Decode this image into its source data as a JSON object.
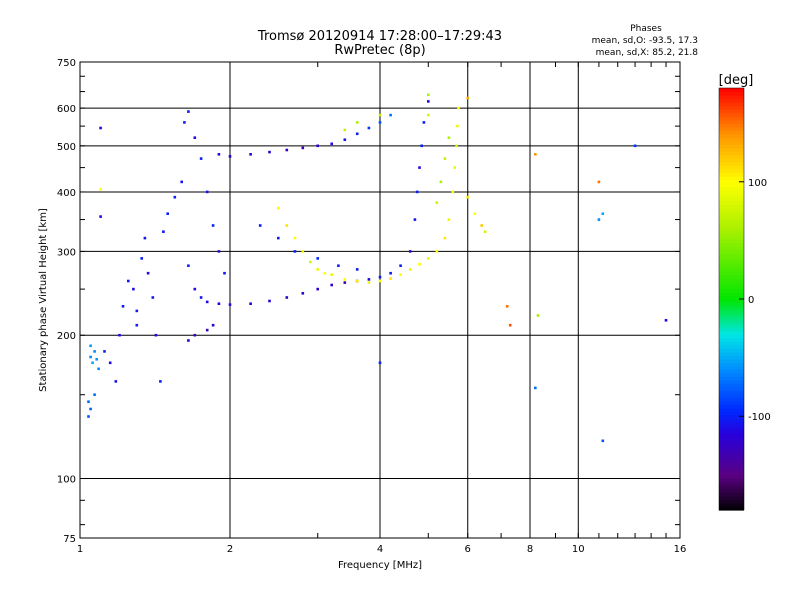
{
  "chart_data": {
    "type": "scatter",
    "title": "Tromsø 20120914 17:28:00–17:29:43",
    "subtitle": "RwPretec (8p)",
    "xlabel": "Frequency [MHz]",
    "ylabel": "Stationary phase Virtual Height [km]",
    "x_scale": "log",
    "y_scale": "log",
    "xlim": [
      1,
      16
    ],
    "ylim": [
      75,
      750
    ],
    "x_ticks": [
      1,
      2,
      4,
      6,
      8,
      10,
      16
    ],
    "x_tick_labels": [
      "1",
      "2",
      "4",
      "6",
      "8",
      "10",
      "16"
    ],
    "x_gridlines": [
      2,
      4,
      6,
      8,
      10
    ],
    "y_ticks": [
      75,
      100,
      200,
      300,
      400,
      500,
      600,
      750
    ],
    "y_tick_labels": [
      "75",
      "100",
      "200",
      "300",
      "400",
      "500",
      "600",
      "750"
    ],
    "y_gridlines": [
      100,
      200,
      300,
      400,
      500,
      600
    ],
    "grid": true,
    "info_box": {
      "title": "Phases",
      "line1": "mean, sd,O: -93.5, 17.3",
      "line2": "mean, sd,X:  85.2, 21.8"
    },
    "colorbar": {
      "label": "[deg]",
      "ticks": [
        100,
        0,
        -100
      ],
      "tick_labels": [
        "100",
        "0",
        "-100"
      ],
      "range": [
        -180,
        180
      ],
      "colormap": "rainbow (black–purple–blue–cyan–green–yellow–red)"
    },
    "series": [
      {
        "points": [
          [
            1.05,
            180,
            -60
          ],
          [
            1.05,
            190,
            -55
          ],
          [
            1.06,
            175,
            -50
          ],
          [
            1.07,
            185,
            -60
          ],
          [
            1.08,
            178,
            -55
          ],
          [
            1.09,
            170,
            -60
          ],
          [
            1.04,
            145,
            -70
          ],
          [
            1.05,
            140,
            -75
          ],
          [
            1.07,
            150,
            -70
          ],
          [
            1.04,
            135,
            -80
          ],
          [
            1.12,
            185,
            -100
          ],
          [
            1.15,
            175,
            -110
          ],
          [
            1.18,
            160,
            -105
          ],
          [
            1.2,
            200,
            -110
          ],
          [
            1.22,
            230,
            -100
          ],
          [
            1.25,
            260,
            -105
          ],
          [
            1.28,
            250,
            -110
          ],
          [
            1.3,
            210,
            -100
          ],
          [
            1.33,
            290,
            -100
          ],
          [
            1.35,
            320,
            -105
          ],
          [
            1.37,
            270,
            -110
          ],
          [
            1.4,
            240,
            -100
          ],
          [
            1.42,
            200,
            -110
          ],
          [
            1.45,
            160,
            -100
          ],
          [
            1.47,
            330,
            -105
          ],
          [
            1.5,
            360,
            -100
          ],
          [
            1.55,
            390,
            -100
          ],
          [
            1.6,
            420,
            -105
          ],
          [
            1.62,
            560,
            -100
          ],
          [
            1.65,
            590,
            -105
          ],
          [
            1.7,
            520,
            -110
          ],
          [
            1.75,
            470,
            -100
          ],
          [
            1.8,
            400,
            -105
          ],
          [
            1.85,
            340,
            -100
          ],
          [
            1.9,
            300,
            -110
          ],
          [
            1.95,
            270,
            -105
          ],
          [
            1.65,
            280,
            -100
          ],
          [
            1.7,
            250,
            -110
          ],
          [
            1.75,
            240,
            -105
          ],
          [
            1.8,
            235,
            -110
          ],
          [
            1.9,
            233,
            -115
          ],
          [
            2.0,
            232,
            -110
          ],
          [
            2.2,
            233,
            -115
          ],
          [
            2.4,
            236,
            -115
          ],
          [
            2.6,
            240,
            -120
          ],
          [
            2.8,
            245,
            -120
          ],
          [
            3.0,
            250,
            -120
          ],
          [
            3.2,
            255,
            -125
          ],
          [
            3.4,
            258,
            -130
          ],
          [
            3.6,
            260,
            -120
          ],
          [
            3.8,
            262,
            -110
          ],
          [
            4.0,
            265,
            -100
          ],
          [
            4.2,
            270,
            -105
          ],
          [
            4.4,
            280,
            -100
          ],
          [
            4.6,
            300,
            -110
          ],
          [
            4.7,
            350,
            -105
          ],
          [
            4.75,
            400,
            -100
          ],
          [
            4.8,
            450,
            -110
          ],
          [
            4.85,
            500,
            -100
          ],
          [
            4.9,
            560,
            -100
          ],
          [
            5.0,
            620,
            -110
          ],
          [
            1.65,
            195,
            -120
          ],
          [
            1.7,
            200,
            -125
          ],
          [
            1.8,
            205,
            -130
          ],
          [
            1.85,
            210,
            -120
          ],
          [
            1.9,
            480,
            -110
          ],
          [
            2.0,
            475,
            -115
          ],
          [
            2.2,
            480,
            -110
          ],
          [
            2.4,
            485,
            -120
          ],
          [
            2.6,
            490,
            -125
          ],
          [
            2.8,
            495,
            -130
          ],
          [
            3.0,
            500,
            -120
          ],
          [
            3.2,
            505,
            -110
          ],
          [
            3.4,
            515,
            -105
          ],
          [
            3.6,
            530,
            -100
          ],
          [
            3.8,
            545,
            -90
          ],
          [
            4.0,
            560,
            -80
          ],
          [
            4.2,
            580,
            -70
          ],
          [
            2.3,
            340,
            -100
          ],
          [
            2.5,
            320,
            -100
          ],
          [
            2.7,
            300,
            -100
          ],
          [
            3.0,
            290,
            -95
          ],
          [
            3.3,
            280,
            -100
          ],
          [
            3.6,
            275,
            -100
          ],
          [
            1.1,
            545,
            -110
          ],
          [
            1.1,
            355,
            -110
          ],
          [
            1.1,
            405,
            100
          ],
          [
            1.3,
            225,
            -100
          ],
          [
            4.0,
            175,
            -100
          ],
          [
            5.0,
            640,
            60
          ],
          [
            6.5,
            330,
            80
          ]
        ]
      },
      {
        "points": [
          [
            2.5,
            370,
            100
          ],
          [
            2.6,
            340,
            110
          ],
          [
            2.7,
            320,
            100
          ],
          [
            2.8,
            300,
            90
          ],
          [
            2.9,
            285,
            80
          ],
          [
            3.0,
            275,
            90
          ],
          [
            3.1,
            270,
            100
          ],
          [
            3.2,
            268,
            90
          ],
          [
            3.4,
            262,
            100
          ],
          [
            3.6,
            260,
            110
          ],
          [
            3.8,
            258,
            90
          ],
          [
            4.0,
            260,
            100
          ],
          [
            4.2,
            263,
            110
          ],
          [
            4.4,
            268,
            100
          ],
          [
            4.6,
            275,
            90
          ],
          [
            4.8,
            282,
            100
          ],
          [
            5.0,
            290,
            90
          ],
          [
            5.2,
            300,
            100
          ],
          [
            5.4,
            320,
            110
          ],
          [
            5.5,
            350,
            90
          ],
          [
            5.6,
            400,
            100
          ],
          [
            5.65,
            450,
            90
          ],
          [
            5.7,
            500,
            80
          ],
          [
            5.72,
            550,
            90
          ],
          [
            5.75,
            600,
            100
          ],
          [
            5.3,
            420,
            60
          ],
          [
            5.4,
            470,
            70
          ],
          [
            5.5,
            520,
            65
          ],
          [
            5.2,
            380,
            75
          ],
          [
            6.0,
            390,
            110
          ],
          [
            6.2,
            360,
            100
          ],
          [
            6.4,
            340,
            120
          ],
          [
            3.4,
            540,
            70
          ],
          [
            3.6,
            560,
            60
          ],
          [
            4.0,
            580,
            70
          ],
          [
            5.0,
            580,
            80
          ],
          [
            6.0,
            630,
            130
          ],
          [
            7.2,
            230,
            150
          ],
          [
            7.3,
            210,
            160
          ],
          [
            8.2,
            480,
            140
          ],
          [
            8.3,
            220,
            60
          ],
          [
            11.0,
            420,
            150
          ],
          [
            11.0,
            350,
            -60
          ],
          [
            11.2,
            360,
            -50
          ],
          [
            11.2,
            120,
            -80
          ],
          [
            8.2,
            155,
            -70
          ],
          [
            13.0,
            500,
            -90
          ],
          [
            15.0,
            215,
            -110
          ]
        ]
      }
    ]
  }
}
